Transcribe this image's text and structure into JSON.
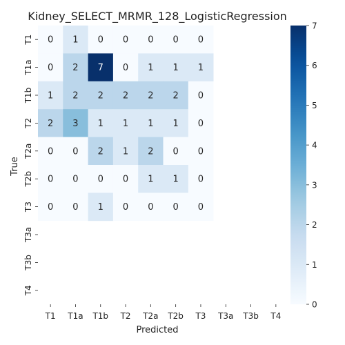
{
  "chart_data": {
    "type": "heatmap",
    "title": "Kidney_SELECT_MRMR_128_LogisticRegression",
    "xlabel": "Predicted",
    "ylabel": "True",
    "x_categories": [
      "T1",
      "T1a",
      "T1b",
      "T2",
      "T2a",
      "T2b",
      "T3",
      "T3a",
      "T3b",
      "T4"
    ],
    "y_categories": [
      "T1",
      "T1a",
      "T1b",
      "T2",
      "T2a",
      "T2b",
      "T3",
      "T3a",
      "T3b",
      "T4"
    ],
    "values": [
      [
        0,
        1,
        0,
        0,
        0,
        0,
        0,
        null,
        null,
        null
      ],
      [
        0,
        2,
        7,
        0,
        1,
        1,
        1,
        null,
        null,
        null
      ],
      [
        1,
        2,
        2,
        2,
        2,
        2,
        0,
        null,
        null,
        null
      ],
      [
        2,
        3,
        1,
        1,
        1,
        1,
        0,
        null,
        null,
        null
      ],
      [
        0,
        0,
        2,
        1,
        2,
        0,
        0,
        null,
        null,
        null
      ],
      [
        0,
        0,
        0,
        0,
        1,
        1,
        0,
        null,
        null,
        null
      ],
      [
        0,
        0,
        1,
        0,
        0,
        0,
        0,
        null,
        null,
        null
      ],
      [
        null,
        null,
        null,
        null,
        null,
        null,
        null,
        null,
        null,
        null
      ],
      [
        null,
        null,
        null,
        null,
        null,
        null,
        null,
        null,
        null,
        null
      ],
      [
        null,
        null,
        null,
        null,
        null,
        null,
        null,
        null,
        null,
        null
      ]
    ],
    "colorbar": {
      "min": 0,
      "max": 7,
      "ticks": [
        0,
        1,
        2,
        3,
        4,
        5,
        6,
        7
      ]
    },
    "colormap": "Blues",
    "colors": {
      "low": "#f7fbff",
      "high": "#08306b"
    }
  }
}
